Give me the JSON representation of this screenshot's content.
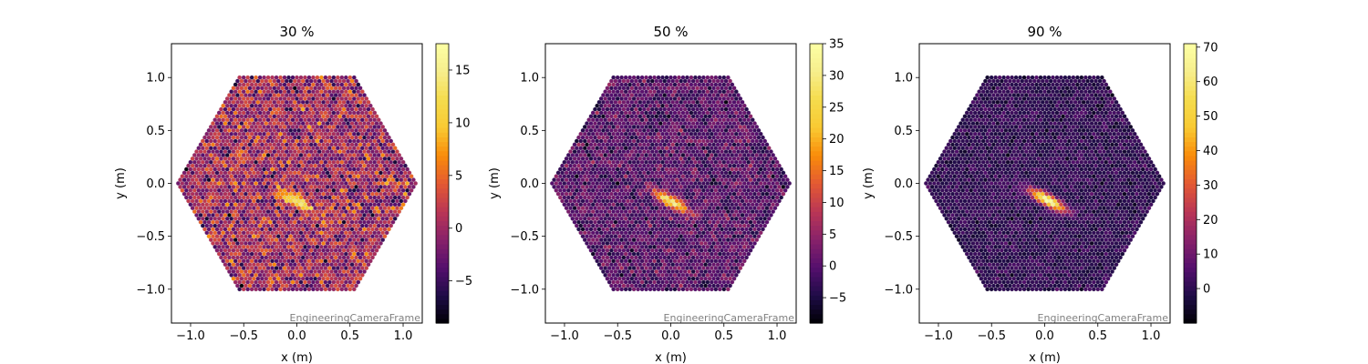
{
  "chart_data": [
    {
      "type": "heatmap",
      "title": "30 %",
      "xlabel": "x  (m)",
      "ylabel": "y  (m)",
      "xlim": [
        -1.18,
        1.18
      ],
      "ylim": [
        -1.32,
        1.32
      ],
      "xticks": [
        -1.0,
        -0.5,
        0.0,
        0.5,
        1.0
      ],
      "xtick_labels": [
        "−1.0",
        "−0.5",
        "0.0",
        "0.5",
        "1.0"
      ],
      "yticks": [
        -1.0,
        -0.5,
        0.0,
        0.5,
        1.0
      ],
      "ytick_labels": [
        "−1.0",
        "−0.5",
        "0.0",
        "0.5",
        "1.0"
      ],
      "colorbar": {
        "min": -9,
        "max": 17.5,
        "ticks": [
          -5,
          0,
          5,
          10,
          15
        ],
        "tick_labels": [
          "−5",
          "0",
          "5",
          "10",
          "15"
        ],
        "colormap": "inferno"
      },
      "noise_level": 0.0,
      "noise_spread": 9.5,
      "hotspots": [
        {
          "x": 0.0,
          "y": -0.17,
          "amp": 16
        }
      ],
      "frame_label": "EngineeringCameraFrame",
      "seed": 11
    },
    {
      "type": "heatmap",
      "title": "50 %",
      "xlabel": "x  (m)",
      "ylabel": "y  (m)",
      "xlim": [
        -1.18,
        1.18
      ],
      "ylim": [
        -1.32,
        1.32
      ],
      "xticks": [
        -1.0,
        -0.5,
        0.0,
        0.5,
        1.0
      ],
      "xtick_labels": [
        "−1.0",
        "−0.5",
        "0.0",
        "0.5",
        "1.0"
      ],
      "yticks": [
        -1.0,
        -0.5,
        0.0,
        0.5,
        1.0
      ],
      "ytick_labels": [
        "−1.0",
        "−0.5",
        "0.0",
        "0.5",
        "1.0"
      ],
      "colorbar": {
        "min": -9,
        "max": 35,
        "ticks": [
          -5,
          0,
          5,
          10,
          15,
          20,
          25,
          30,
          35
        ],
        "tick_labels": [
          "−5",
          "0",
          "5",
          "10",
          "15",
          "20",
          "25",
          "30",
          "35"
        ],
        "colormap": "inferno"
      },
      "noise_level": 0.0,
      "noise_spread": 9.0,
      "hotspots": [
        {
          "x": 0.0,
          "y": -0.17,
          "amp": 30
        }
      ],
      "frame_label": "EngineeringCameraFrame",
      "seed": 23
    },
    {
      "type": "heatmap",
      "title": "90 %",
      "xlabel": "x  (m)",
      "ylabel": "y  (m)",
      "xlim": [
        -1.18,
        1.18
      ],
      "ylim": [
        -1.32,
        1.32
      ],
      "xticks": [
        -1.0,
        -0.5,
        0.0,
        0.5,
        1.0
      ],
      "xtick_labels": [
        "−1.0",
        "−0.5",
        "0.0",
        "0.5",
        "1.0"
      ],
      "yticks": [
        -1.0,
        -0.5,
        0.0,
        0.5,
        1.0
      ],
      "ytick_labels": [
        "−1.0",
        "−0.5",
        "0.0",
        "0.5",
        "1.0"
      ],
      "colorbar": {
        "min": -10,
        "max": 71,
        "ticks": [
          0,
          10,
          20,
          30,
          40,
          50,
          60,
          70
        ],
        "tick_labels": [
          "0",
          "10",
          "20",
          "30",
          "40",
          "50",
          "60",
          "70"
        ],
        "colormap": "inferno"
      },
      "noise_level": 0.5,
      "noise_spread": 9.0,
      "hotspots": [
        {
          "x": 0.03,
          "y": -0.16,
          "amp": 70
        }
      ],
      "frame_label": "EngineeringCameraFrame",
      "seed": 37
    }
  ]
}
